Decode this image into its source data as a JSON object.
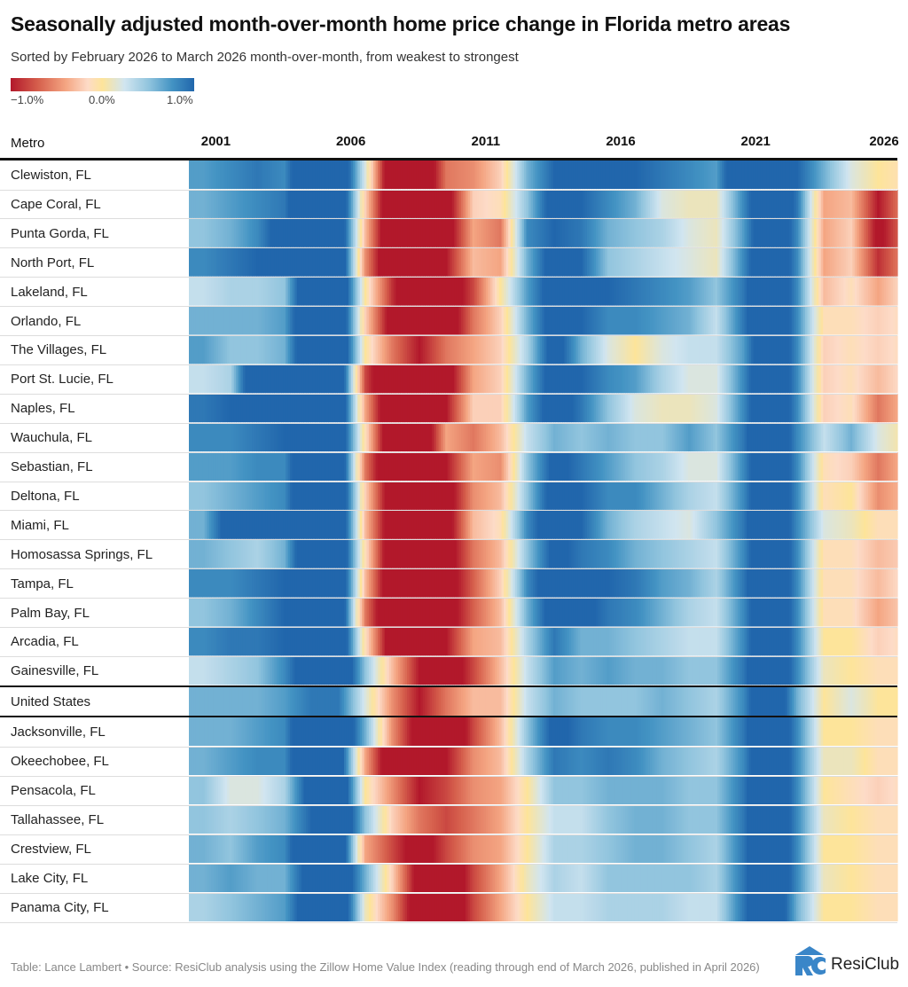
{
  "title": "Seasonally adjusted month-over-month home price change in Florida metro areas",
  "subtitle": "Sorted by February 2026 to March 2026 month-over-month, from weakest to strongest",
  "legend": {
    "min_label": "−1.0%",
    "mid_label": "0.0%",
    "max_label": "1.0%"
  },
  "footer": "Table: Lance Lambert • Source: ResiClub analysis using the Zillow Home Value Index (reading through end of March 2026, published in April 2026)",
  "logo": {
    "text": "ResiClub",
    "mark": "RC",
    "color": "#3a86c8"
  },
  "chart_data": {
    "type": "heatmap",
    "title": "Seasonally adjusted month-over-month home price change in Florida metro areas",
    "row_header": "Metro",
    "value_unit": "% month-over-month (approx. yearly averages)",
    "color_range": [
      -1.0,
      1.0
    ],
    "colors": {
      "low": "#b2182b",
      "mid": "#fde49a",
      "high": "#2166ac"
    },
    "x_range": [
      "2000-01",
      "2026-03"
    ],
    "x_tick_labels": [
      "2001",
      "2006",
      "2011",
      "2016",
      "2021",
      "2026"
    ],
    "years": [
      2000,
      2001,
      2002,
      2003,
      2004,
      2005,
      2006,
      2007,
      2008,
      2009,
      2010,
      2011,
      2012,
      2013,
      2014,
      2015,
      2016,
      2017,
      2018,
      2019,
      2020,
      2021,
      2022,
      2023,
      2024,
      2025,
      2026
    ],
    "rows": [
      {
        "name": "Clewiston, FL",
        "values": [
          0.7,
          0.8,
          0.9,
          0.8,
          1.5,
          1.5,
          0.2,
          -1.5,
          -1.5,
          -0.6,
          -0.5,
          -0.2,
          0.6,
          1.0,
          1.2,
          1.0,
          1.0,
          0.9,
          0.8,
          0.7,
          1.5,
          1.5,
          1.0,
          0.6,
          0.2,
          0.0,
          -0.1
        ]
      },
      {
        "name": "Cape Coral, FL",
        "values": [
          0.6,
          0.7,
          0.8,
          0.9,
          1.5,
          1.5,
          -0.2,
          -1.5,
          -1.5,
          -1.2,
          -0.2,
          -0.1,
          0.5,
          1.2,
          1.0,
          0.8,
          0.6,
          0.2,
          0.1,
          0.1,
          0.8,
          1.5,
          0.9,
          -0.4,
          -0.3,
          -1.0,
          -0.5
        ]
      },
      {
        "name": "Punta Gorda, FL",
        "values": [
          0.5,
          0.6,
          0.8,
          1.2,
          1.5,
          1.4,
          -0.3,
          -1.5,
          -1.3,
          -1.2,
          -0.4,
          -0.6,
          0.8,
          1.0,
          0.9,
          0.6,
          0.5,
          0.4,
          0.2,
          0.1,
          0.7,
          1.5,
          0.8,
          -0.4,
          -0.2,
          -1.1,
          -0.6
        ]
      },
      {
        "name": "North Port, FL",
        "values": [
          0.8,
          0.9,
          1.0,
          1.2,
          1.5,
          1.5,
          -0.5,
          -1.5,
          -1.5,
          -1.0,
          -0.3,
          -0.4,
          0.6,
          1.2,
          1.0,
          0.5,
          0.4,
          0.3,
          0.2,
          0.1,
          0.8,
          1.5,
          0.8,
          -0.4,
          -0.2,
          -0.9,
          -0.5
        ]
      },
      {
        "name": "Lakeland, FL",
        "values": [
          0.3,
          0.4,
          0.4,
          0.5,
          1.5,
          1.5,
          0.0,
          -0.9,
          -1.5,
          -1.3,
          -0.8,
          0.0,
          0.7,
          1.2,
          1.1,
          1.0,
          0.9,
          0.8,
          0.7,
          0.5,
          0.9,
          1.5,
          0.8,
          -0.3,
          -0.1,
          -0.4,
          -0.1
        ]
      },
      {
        "name": "Orlando, FL",
        "values": [
          0.6,
          0.6,
          0.6,
          0.7,
          1.5,
          1.5,
          -0.2,
          -1.2,
          -1.5,
          -1.3,
          -0.6,
          -0.2,
          0.6,
          1.2,
          1.0,
          0.8,
          0.8,
          0.7,
          0.6,
          0.3,
          0.9,
          1.5,
          0.8,
          -0.1,
          -0.1,
          -0.2,
          -0.1
        ]
      },
      {
        "name": "The Villages, FL",
        "values": [
          0.7,
          0.5,
          0.5,
          0.6,
          1.5,
          1.5,
          0.0,
          -0.6,
          -1.0,
          -0.6,
          -0.4,
          -0.2,
          0.4,
          1.2,
          0.6,
          0.2,
          0.0,
          0.2,
          0.3,
          0.3,
          0.7,
          1.5,
          0.8,
          -0.2,
          -0.1,
          -0.2,
          -0.1
        ]
      },
      {
        "name": "Port St. Lucie, FL",
        "values": [
          0.3,
          0.4,
          1.5,
          1.5,
          1.5,
          1.5,
          -0.8,
          -1.5,
          -1.5,
          -1.2,
          -0.4,
          -0.2,
          0.6,
          1.2,
          1.0,
          0.8,
          0.7,
          0.4,
          0.2,
          0.2,
          0.8,
          1.5,
          0.8,
          -0.2,
          -0.1,
          -0.3,
          -0.1
        ]
      },
      {
        "name": "Naples, FL",
        "values": [
          0.9,
          1.0,
          1.0,
          1.1,
          1.5,
          1.5,
          -0.4,
          -1.5,
          -1.5,
          -1.0,
          -0.2,
          -0.2,
          0.7,
          1.2,
          0.9,
          0.5,
          0.2,
          0.1,
          0.1,
          0.2,
          0.8,
          1.5,
          0.8,
          -0.2,
          -0.1,
          -0.6,
          -0.3
        ]
      },
      {
        "name": "Wauchula, FL",
        "values": [
          0.8,
          0.8,
          0.9,
          1.0,
          1.5,
          1.4,
          -0.1,
          -1.5,
          -1.5,
          -0.4,
          -0.6,
          -0.3,
          0.3,
          0.6,
          0.5,
          0.6,
          0.5,
          0.5,
          0.7,
          0.5,
          0.9,
          1.5,
          0.8,
          0.3,
          0.6,
          0.2,
          0.0
        ]
      },
      {
        "name": "Sebastian, FL",
        "values": [
          0.7,
          0.7,
          0.8,
          0.8,
          1.5,
          1.5,
          -0.6,
          -1.5,
          -1.5,
          -1.0,
          -0.4,
          -0.5,
          0.5,
          1.1,
          0.9,
          0.7,
          0.5,
          0.4,
          0.2,
          0.2,
          0.8,
          1.5,
          0.8,
          -0.1,
          -0.2,
          -0.6,
          -0.3
        ]
      },
      {
        "name": "Deltona, FL",
        "values": [
          0.5,
          0.6,
          0.7,
          0.8,
          1.5,
          1.5,
          -0.2,
          -1.3,
          -1.5,
          -1.2,
          -0.5,
          -0.3,
          0.5,
          1.2,
          1.0,
          0.8,
          0.8,
          0.6,
          0.4,
          0.3,
          0.8,
          1.5,
          0.8,
          -0.1,
          0.0,
          -0.5,
          -0.3
        ]
      },
      {
        "name": "Miami, FL",
        "values": [
          0.6,
          1.2,
          1.5,
          1.5,
          1.5,
          1.5,
          -0.3,
          -1.3,
          -1.5,
          -1.2,
          -0.3,
          -0.1,
          0.8,
          1.3,
          1.0,
          0.6,
          0.4,
          0.3,
          0.2,
          0.5,
          0.9,
          1.5,
          0.8,
          0.2,
          0.1,
          -0.1,
          -0.1
        ]
      },
      {
        "name": "Homosassa Springs, FL",
        "values": [
          0.6,
          0.5,
          0.4,
          0.6,
          1.5,
          1.5,
          -0.1,
          -1.4,
          -1.5,
          -1.2,
          -0.6,
          -0.3,
          0.5,
          1.1,
          0.9,
          0.8,
          0.6,
          0.5,
          0.4,
          0.3,
          0.8,
          1.5,
          0.8,
          -0.1,
          -0.1,
          -0.3,
          -0.2
        ]
      },
      {
        "name": "Tampa, FL",
        "values": [
          0.8,
          0.8,
          0.9,
          1.0,
          1.5,
          1.5,
          -0.3,
          -1.4,
          -1.5,
          -1.2,
          -0.7,
          -0.2,
          0.8,
          1.3,
          1.1,
          1.0,
          0.9,
          0.7,
          0.6,
          0.4,
          0.9,
          1.5,
          0.8,
          -0.1,
          -0.1,
          -0.3,
          -0.1
        ]
      },
      {
        "name": "Palm Bay, FL",
        "values": [
          0.5,
          0.6,
          0.8,
          1.0,
          1.5,
          1.5,
          -0.6,
          -1.5,
          -1.5,
          -1.2,
          -0.7,
          -0.3,
          0.6,
          1.2,
          1.1,
          0.9,
          0.8,
          0.6,
          0.4,
          0.3,
          0.8,
          1.5,
          0.8,
          -0.1,
          -0.1,
          -0.4,
          -0.2
        ]
      },
      {
        "name": "Arcadia, FL",
        "values": [
          0.8,
          0.9,
          0.9,
          1.0,
          1.5,
          1.5,
          -0.1,
          -1.3,
          -1.5,
          -1.0,
          -0.4,
          -0.3,
          0.4,
          0.9,
          0.6,
          0.6,
          0.5,
          0.4,
          0.3,
          0.3,
          0.8,
          1.5,
          0.8,
          0.0,
          0.0,
          -0.2,
          -0.1
        ]
      },
      {
        "name": "Gainesville, FL",
        "values": [
          0.3,
          0.4,
          0.5,
          0.8,
          1.3,
          1.5,
          0.5,
          -0.3,
          -1.0,
          -1.3,
          -0.8,
          -0.3,
          0.3,
          0.7,
          0.6,
          0.7,
          0.6,
          0.6,
          0.5,
          0.5,
          0.9,
          1.5,
          0.8,
          0.1,
          0.0,
          -0.1,
          -0.1
        ]
      },
      {
        "name": "United States",
        "values": [
          0.6,
          0.6,
          0.6,
          0.7,
          0.9,
          0.9,
          0.2,
          -0.5,
          -1.0,
          -0.6,
          -0.3,
          -0.3,
          0.3,
          0.6,
          0.5,
          0.5,
          0.5,
          0.6,
          0.5,
          0.4,
          0.8,
          1.5,
          0.6,
          0.0,
          0.2,
          0.0,
          0.0
        ]
      },
      {
        "name": "Jacksonville, FL",
        "values": [
          0.6,
          0.6,
          0.7,
          0.8,
          1.5,
          1.5,
          0.6,
          -0.5,
          -1.2,
          -1.5,
          -0.8,
          -0.3,
          0.5,
          1.1,
          0.9,
          0.8,
          0.8,
          0.7,
          0.6,
          0.5,
          0.9,
          1.5,
          0.8,
          0.0,
          0.0,
          -0.1,
          -0.1
        ]
      },
      {
        "name": "Okeechobee, FL",
        "values": [
          0.6,
          0.7,
          0.8,
          0.8,
          1.5,
          1.3,
          -0.4,
          -1.4,
          -1.5,
          -1.0,
          -0.5,
          -0.3,
          0.4,
          0.9,
          0.8,
          0.9,
          0.8,
          0.6,
          0.5,
          0.4,
          0.8,
          1.5,
          0.8,
          0.1,
          0.1,
          -0.1,
          -0.1
        ]
      },
      {
        "name": "Pensacola, FL",
        "values": [
          0.5,
          0.2,
          0.2,
          0.4,
          1.2,
          1.5,
          0.0,
          -0.5,
          -1.0,
          -0.8,
          -0.5,
          -0.4,
          0.0,
          0.5,
          0.5,
          0.6,
          0.6,
          0.6,
          0.5,
          0.5,
          0.9,
          1.5,
          0.8,
          0.0,
          -0.1,
          -0.2,
          -0.1
        ]
      },
      {
        "name": "Tallahassee, FL",
        "values": [
          0.5,
          0.4,
          0.5,
          0.6,
          1.0,
          1.5,
          0.5,
          -0.2,
          -0.6,
          -0.8,
          -0.6,
          -0.4,
          0.0,
          0.3,
          0.3,
          0.5,
          0.6,
          0.6,
          0.5,
          0.5,
          0.9,
          1.5,
          0.8,
          0.1,
          0.0,
          -0.1,
          -0.1
        ]
      },
      {
        "name": "Crestview, FL",
        "values": [
          0.6,
          0.5,
          0.7,
          0.8,
          1.5,
          1.5,
          -0.4,
          -0.8,
          -1.2,
          -0.8,
          -0.5,
          -0.4,
          0.0,
          0.4,
          0.4,
          0.5,
          0.6,
          0.6,
          0.5,
          0.4,
          0.9,
          1.5,
          0.8,
          0.0,
          0.0,
          -0.1,
          -0.1
        ]
      },
      {
        "name": "Lake City, FL",
        "values": [
          0.6,
          0.7,
          0.6,
          0.6,
          1.2,
          1.4,
          0.6,
          -0.2,
          -1.2,
          -1.4,
          -0.8,
          -0.4,
          0.1,
          0.4,
          0.3,
          0.5,
          0.5,
          0.5,
          0.5,
          0.4,
          0.9,
          1.5,
          0.8,
          0.1,
          0.0,
          -0.1,
          -0.1
        ]
      },
      {
        "name": "Panama City, FL",
        "values": [
          0.4,
          0.5,
          0.6,
          0.7,
          1.3,
          1.5,
          0.1,
          -0.5,
          -1.3,
          -1.4,
          -0.8,
          -0.4,
          0.0,
          0.3,
          0.3,
          0.4,
          0.4,
          0.4,
          0.3,
          0.3,
          0.9,
          1.5,
          0.6,
          0.0,
          0.0,
          -0.1,
          -0.1
        ]
      }
    ]
  }
}
